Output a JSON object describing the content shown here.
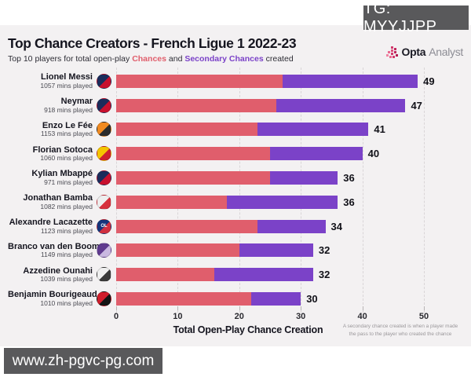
{
  "overlays": {
    "tg_badge": "TG: MYYJJPP",
    "watermark": "www.zh-pgvc-pg.com"
  },
  "header": {
    "title": "Top Chance Creators - French Ligue 1 2022-23",
    "subtitle": {
      "part1": "Top 10 players for total open-play ",
      "chances": "Chances",
      "and": " and ",
      "secondary": "Secondary Chances",
      "created": " created"
    },
    "brand": {
      "opta": "Opta",
      "analyst": "Analyst"
    }
  },
  "colors": {
    "chances_red": "#e05e6c",
    "secondary_purple": "#7b42c8",
    "card_bg": "#f3f1f2",
    "brand_icon": "#d03d6e"
  },
  "chart_data": {
    "type": "bar",
    "orientation": "horizontal",
    "stacked": true,
    "title": "Top Chance Creators - French Ligue 1 2022-23",
    "subtitle": "Top 10 players for total open-play Chances and Secondary Chances created",
    "series_names": [
      "Chances",
      "Secondary Chances"
    ],
    "xlabel": "Total Open-Play Chance Creation",
    "x_ticks": [
      0,
      10,
      20,
      30,
      40,
      50
    ],
    "xlim": [
      0,
      52
    ],
    "grid": "dashed-vertical",
    "footnote_line1": "A secondary chance created is when a player made",
    "footnote_line2": "the pass to the player who created the chance",
    "players": [
      {
        "name": "Lionel Messi",
        "mins": "1057 mins played",
        "team": "PSG",
        "badge_colors": [
          "#1c2c5b",
          "#c8102e"
        ],
        "badge_label": "",
        "chances": 27,
        "secondary": 22,
        "total": 49
      },
      {
        "name": "Neymar",
        "mins": "918 mins played",
        "team": "PSG",
        "badge_colors": [
          "#1c2c5b",
          "#c8102e"
        ],
        "badge_label": "",
        "chances": 26,
        "secondary": 21,
        "total": 47
      },
      {
        "name": "Enzo Le Fée",
        "mins": "1153 mins played",
        "team": "Lorient",
        "badge_colors": [
          "#f08a21",
          "#2b2b2b"
        ],
        "badge_label": "",
        "chances": 23,
        "secondary": 18,
        "total": 41
      },
      {
        "name": "Florian Sotoca",
        "mins": "1060 mins played",
        "team": "Lens",
        "badge_colors": [
          "#f5c500",
          "#cf2030"
        ],
        "badge_label": "",
        "chances": 25,
        "secondary": 15,
        "total": 40
      },
      {
        "name": "Kylian Mbappé",
        "mins": "971 mins played",
        "team": "PSG",
        "badge_colors": [
          "#1c2c5b",
          "#c8102e"
        ],
        "badge_label": "",
        "chances": 25,
        "secondary": 11,
        "total": 36
      },
      {
        "name": "Jonathan Bamba",
        "mins": "1082 mins played",
        "team": "Lille",
        "badge_colors": [
          "#eeeeee",
          "#d6303c"
        ],
        "badge_label": "",
        "chances": 18,
        "secondary": 18,
        "total": 36
      },
      {
        "name": "Alexandre Lacazette",
        "mins": "1123 mins played",
        "team": "Lyon",
        "badge_colors": [
          "#16357c",
          "#d03040"
        ],
        "badge_label": "OL",
        "chances": 23,
        "secondary": 11,
        "total": 34
      },
      {
        "name": "Branco van den Boomen",
        "mins": "1149 mins played",
        "team": "Toulouse",
        "badge_colors": [
          "#5f3a8e",
          "#c9b8e0"
        ],
        "badge_label": "",
        "chances": 20,
        "secondary": 12,
        "total": 32
      },
      {
        "name": "Azzedine Ounahi",
        "mins": "1039 mins played",
        "team": "Angers",
        "badge_colors": [
          "#f0f0f0",
          "#3a3a3a"
        ],
        "badge_label": "",
        "chances": 16,
        "secondary": 16,
        "total": 32
      },
      {
        "name": "Benjamin Bourigeaud",
        "mins": "1010 mins played",
        "team": "Rennes",
        "badge_colors": [
          "#d01e2c",
          "#141414"
        ],
        "badge_label": "",
        "chances": 22,
        "secondary": 8,
        "total": 30
      }
    ]
  }
}
